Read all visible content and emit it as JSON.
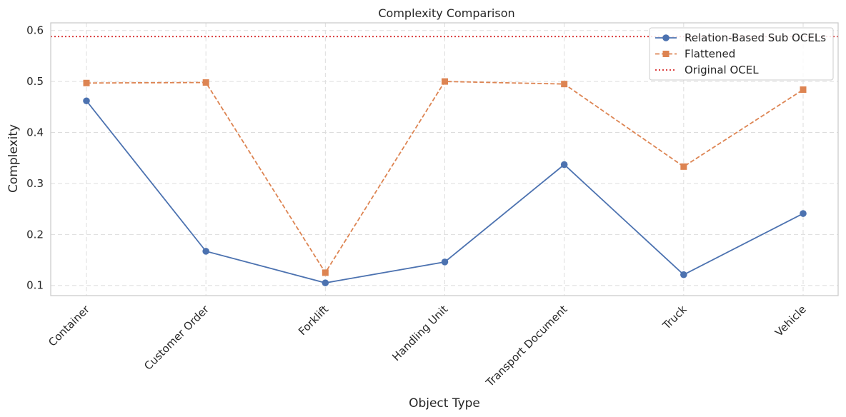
{
  "chart_data": {
    "type": "line",
    "title": "Complexity Comparison",
    "xlabel": "Object Type",
    "ylabel": "Complexity",
    "categories": [
      "Container",
      "Customer Order",
      "Forklift",
      "Handling Unit",
      "Transport Document",
      "Truck",
      "Vehicle"
    ],
    "ylim": [
      0.08,
      0.615
    ],
    "yticks": [
      0.1,
      0.2,
      0.3,
      0.4,
      0.5,
      0.6
    ],
    "ytick_labels": [
      "0.1",
      "0.2",
      "0.3",
      "0.4",
      "0.5",
      "0.6"
    ],
    "grid": true,
    "legend_position": "top-right",
    "series": [
      {
        "name": "Relation-Based Sub OCELs",
        "color": "#4c72b0",
        "line_style": "solid",
        "marker": "circle",
        "values": [
          0.462,
          0.167,
          0.105,
          0.146,
          0.337,
          0.121,
          0.241
        ]
      },
      {
        "name": "Flattened",
        "color": "#dd8452",
        "line_style": "dashed",
        "marker": "square",
        "values": [
          0.497,
          0.498,
          0.125,
          0.5,
          0.495,
          0.333,
          0.484
        ]
      }
    ],
    "reference_lines": [
      {
        "name": "Original OCEL",
        "color": "#d62728",
        "line_style": "dotted",
        "value": 0.588
      }
    ]
  }
}
